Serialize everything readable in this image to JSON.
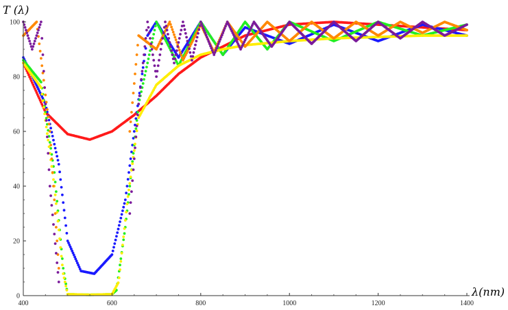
{
  "chart_data": {
    "type": "scatter",
    "title": "",
    "xlabel": "λ(nm)",
    "ylabel": "T (λ)",
    "xlim": [
      400,
      1400
    ],
    "ylim": [
      0,
      100
    ],
    "x_ticks": [
      400,
      600,
      800,
      1000,
      1200,
      1400
    ],
    "y_ticks": [
      0,
      20,
      40,
      60,
      80,
      100
    ],
    "grid": false,
    "legend": "none",
    "series": [
      {
        "color": "#ff1a1a",
        "x": [
          400,
          450,
          500,
          550,
          600,
          650,
          700,
          750,
          800,
          850,
          900,
          1000,
          1100,
          1200,
          1300,
          1400
        ],
        "y": [
          85,
          67,
          59,
          57,
          60,
          66,
          73,
          81,
          87,
          91,
          95,
          99,
          100,
          99,
          98,
          97
        ]
      },
      {
        "color": "#1a1aff",
        "x": [
          400,
          450,
          480,
          500,
          530,
          560,
          600,
          630,
          650,
          680,
          700,
          750,
          800,
          850,
          900,
          1000,
          1100,
          1200,
          1300,
          1400
        ],
        "y": [
          87,
          70,
          48,
          20,
          9,
          8,
          15,
          35,
          60,
          95,
          100,
          87,
          100,
          88,
          98,
          92,
          99,
          93,
          99,
          95
        ]
      },
      {
        "color": "#22ee22",
        "x": [
          400,
          440,
          470,
          490,
          500,
          550,
          600,
          610,
          630,
          660,
          700,
          750,
          800,
          850,
          900,
          950,
          1000,
          1100,
          1200,
          1300,
          1400
        ],
        "y": [
          86,
          78,
          45,
          10,
          0.5,
          0.3,
          0.5,
          2,
          25,
          70,
          100,
          84,
          100,
          88,
          100,
          90,
          100,
          93,
          100,
          95,
          99
        ]
      },
      {
        "color": "#ffee00",
        "x": [
          400,
          440,
          470,
          490,
          500,
          550,
          600,
          615,
          635,
          660,
          700,
          750,
          800,
          850,
          900,
          1000,
          1100,
          1200,
          1300,
          1400
        ],
        "y": [
          85,
          76,
          40,
          8,
          0.5,
          0.3,
          0.5,
          5,
          35,
          65,
          77,
          84,
          88,
          90,
          91.5,
          93,
          94,
          94.5,
          95,
          95
        ]
      },
      {
        "color": "#ff8800",
        "x": [
          400,
          430,
          460,
          480,
          640,
          660,
          700,
          730,
          760,
          800,
          830,
          860,
          900,
          950,
          1000,
          1050,
          1100,
          1150,
          1200,
          1250,
          1300,
          1350,
          1400
        ],
        "y": [
          95,
          100,
          60,
          10,
          60,
          95,
          90,
          100,
          86,
          99,
          89,
          100,
          91,
          100,
          93,
          100,
          94,
          100,
          95,
          100,
          96,
          100,
          97
        ]
      },
      {
        "color": "#7a1a9a",
        "x": [
          400,
          420,
          440,
          460,
          480,
          640,
          660,
          680,
          700,
          720,
          740,
          760,
          780,
          800,
          830,
          860,
          890,
          920,
          960,
          1000,
          1050,
          1100,
          1150,
          1200,
          1250,
          1300,
          1350,
          1400
        ],
        "y": [
          100,
          90,
          100,
          40,
          5,
          30,
          70,
          100,
          80,
          100,
          85,
          100,
          86,
          100,
          88,
          100,
          90,
          100,
          91,
          100,
          92,
          100,
          93,
          100,
          94,
          100,
          95,
          99
        ]
      }
    ]
  }
}
